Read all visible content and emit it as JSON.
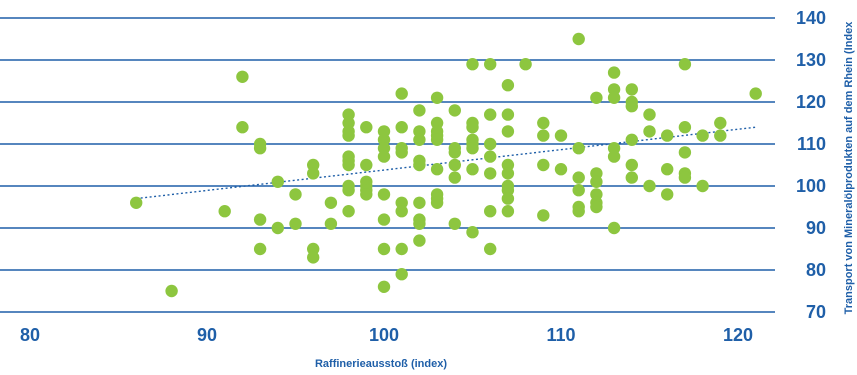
{
  "chart_data": {
    "type": "scatter",
    "title": "",
    "xlabel": "Raffinerieausstoß (index)",
    "ylabel": "Transport von Mineralölprodukten auf dem Rhein (Index",
    "xlim": [
      77,
      124
    ],
    "ylim": [
      67,
      144
    ],
    "xticks": [
      80,
      90,
      100,
      110,
      120
    ],
    "yticks": [
      70,
      80,
      90,
      100,
      110,
      120,
      130,
      140
    ],
    "grid": "horizontal",
    "colors": {
      "points": "#8dc63f",
      "grid": "#1f5fa8",
      "text": "#1f5fa8",
      "trend": "#1f5fa8"
    },
    "trendline": {
      "style": "dotted",
      "x": [
        86,
        121
      ],
      "y": [
        97,
        114
      ]
    },
    "points": [
      [
        86,
        96
      ],
      [
        88,
        75
      ],
      [
        91,
        94
      ],
      [
        92,
        126
      ],
      [
        92,
        114
      ],
      [
        93,
        110
      ],
      [
        93,
        109
      ],
      [
        93,
        92
      ],
      [
        93,
        85
      ],
      [
        94,
        101
      ],
      [
        94,
        90
      ],
      [
        95,
        98
      ],
      [
        95,
        91
      ],
      [
        96,
        105
      ],
      [
        96,
        103
      ],
      [
        96,
        85
      ],
      [
        96,
        83
      ],
      [
        97,
        96
      ],
      [
        97,
        91
      ],
      [
        98,
        117
      ],
      [
        98,
        115
      ],
      [
        98,
        113
      ],
      [
        98,
        112
      ],
      [
        98,
        107
      ],
      [
        98,
        106
      ],
      [
        98,
        105
      ],
      [
        98,
        100
      ],
      [
        98,
        99
      ],
      [
        98,
        94
      ],
      [
        99,
        114
      ],
      [
        99,
        105
      ],
      [
        99,
        101
      ],
      [
        99,
        100
      ],
      [
        99,
        99
      ],
      [
        99,
        98
      ],
      [
        100,
        113
      ],
      [
        100,
        111
      ],
      [
        100,
        109
      ],
      [
        100,
        107
      ],
      [
        100,
        98
      ],
      [
        100,
        92
      ],
      [
        100,
        85
      ],
      [
        100,
        76
      ],
      [
        101,
        122
      ],
      [
        101,
        114
      ],
      [
        101,
        109
      ],
      [
        101,
        108
      ],
      [
        101,
        96
      ],
      [
        101,
        94
      ],
      [
        101,
        85
      ],
      [
        101,
        79
      ],
      [
        102,
        118
      ],
      [
        102,
        113
      ],
      [
        102,
        111
      ],
      [
        102,
        106
      ],
      [
        102,
        105
      ],
      [
        102,
        96
      ],
      [
        102,
        92
      ],
      [
        102,
        91
      ],
      [
        102,
        87
      ],
      [
        103,
        121
      ],
      [
        103,
        115
      ],
      [
        103,
        113
      ],
      [
        103,
        112
      ],
      [
        103,
        111
      ],
      [
        103,
        104
      ],
      [
        103,
        98
      ],
      [
        103,
        97
      ],
      [
        103,
        96
      ],
      [
        104,
        118
      ],
      [
        104,
        109
      ],
      [
        104,
        108
      ],
      [
        104,
        105
      ],
      [
        104,
        102
      ],
      [
        104,
        91
      ],
      [
        105,
        129
      ],
      [
        105,
        115
      ],
      [
        105,
        114
      ],
      [
        105,
        111
      ],
      [
        105,
        110
      ],
      [
        105,
        109
      ],
      [
        105,
        104
      ],
      [
        105,
        89
      ],
      [
        106,
        129
      ],
      [
        106,
        117
      ],
      [
        106,
        110
      ],
      [
        106,
        107
      ],
      [
        106,
        103
      ],
      [
        106,
        94
      ],
      [
        106,
        85
      ],
      [
        107,
        124
      ],
      [
        107,
        117
      ],
      [
        107,
        113
      ],
      [
        107,
        105
      ],
      [
        107,
        103
      ],
      [
        107,
        100
      ],
      [
        107,
        99
      ],
      [
        107,
        97
      ],
      [
        107,
        94
      ],
      [
        108,
        129
      ],
      [
        109,
        115
      ],
      [
        109,
        112
      ],
      [
        109,
        105
      ],
      [
        109,
        93
      ],
      [
        110,
        112
      ],
      [
        110,
        104
      ],
      [
        111,
        135
      ],
      [
        111,
        109
      ],
      [
        111,
        102
      ],
      [
        111,
        99
      ],
      [
        111,
        95
      ],
      [
        111,
        94
      ],
      [
        112,
        121
      ],
      [
        112,
        103
      ],
      [
        112,
        101
      ],
      [
        112,
        98
      ],
      [
        112,
        96
      ],
      [
        112,
        95
      ],
      [
        113,
        127
      ],
      [
        113,
        123
      ],
      [
        113,
        121
      ],
      [
        113,
        109
      ],
      [
        113,
        107
      ],
      [
        113,
        90
      ],
      [
        114,
        123
      ],
      [
        114,
        120
      ],
      [
        114,
        119
      ],
      [
        114,
        111
      ],
      [
        114,
        105
      ],
      [
        114,
        102
      ],
      [
        115,
        117
      ],
      [
        115,
        113
      ],
      [
        115,
        100
      ],
      [
        116,
        112
      ],
      [
        116,
        104
      ],
      [
        116,
        98
      ],
      [
        117,
        129
      ],
      [
        117,
        114
      ],
      [
        117,
        108
      ],
      [
        117,
        103
      ],
      [
        117,
        102
      ],
      [
        118,
        112
      ],
      [
        118,
        100
      ],
      [
        119,
        115
      ],
      [
        119,
        112
      ],
      [
        121,
        122
      ]
    ]
  }
}
